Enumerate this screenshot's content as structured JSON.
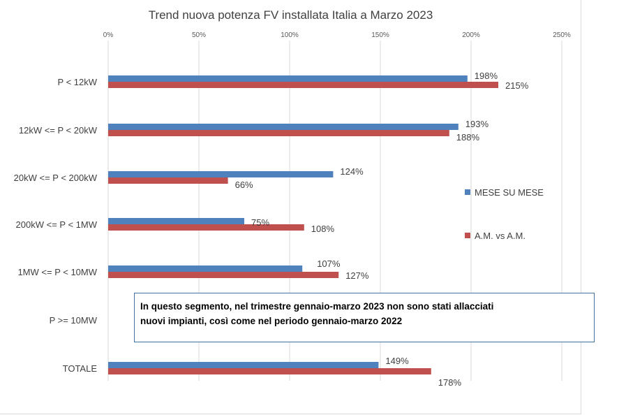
{
  "chart_data": {
    "type": "bar",
    "orientation": "horizontal",
    "title": "Trend nuova potenza FV installata Italia a Marzo 2023",
    "categories": [
      "P < 12kW",
      "12kW <= P < 20kW",
      "20kW <= P < 200kW",
      "200kW <= P < 1MW",
      "1MW <= P < 10MW",
      "P >= 10MW",
      "TOTALE"
    ],
    "series": [
      {
        "name": "MESE SU  MESE",
        "color": "#4f81bd",
        "values": [
          198,
          193,
          124,
          75,
          107,
          null,
          149
        ],
        "labels": [
          "198%",
          "193%",
          "124%",
          "75%",
          "107%",
          "",
          "149%"
        ]
      },
      {
        "name": "A.M. vs A.M.",
        "color": "#c0504d",
        "values": [
          215,
          188,
          66,
          108,
          127,
          null,
          178
        ],
        "labels": [
          "215%",
          "188%",
          "66%",
          "108%",
          "127%",
          "",
          "178%"
        ]
      }
    ],
    "xlim": [
      0,
      250
    ],
    "x_ticks": [
      0,
      50,
      100,
      150,
      200,
      250
    ],
    "x_tick_labels": [
      "0%",
      "50%",
      "100%",
      "150%",
      "200%",
      "250%"
    ],
    "grid": "vertical",
    "legend_position": "right"
  },
  "annotation": {
    "line1": "In questo segmento, nel trimestre gennaio-marzo 2023 non sono stati allacciati",
    "line2": "nuovi impianti, così come nel periodo gennaio-marzo 2022"
  }
}
